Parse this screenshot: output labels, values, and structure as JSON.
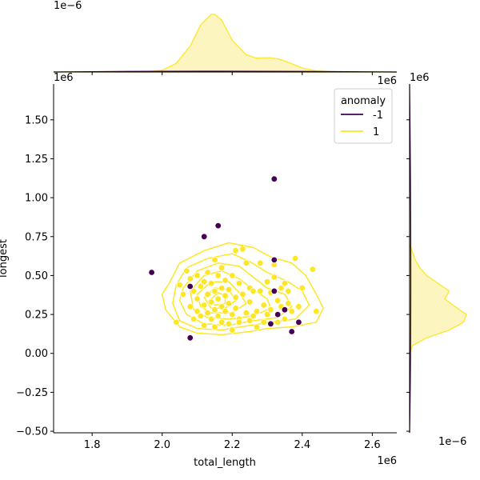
{
  "chart_data": {
    "type": "scatter",
    "xlabel": "total_length",
    "ylabel": "longest",
    "x_offset_label": "1e6",
    "y_offset_label": "1e6",
    "top_marginal_offset_label": "1e−6",
    "right_marginal_offset_label": "1e−6",
    "xlim": [
      1.69,
      2.67
    ],
    "ylim": [
      -0.51,
      1.73
    ],
    "x_ticks": [
      1.8,
      2.0,
      2.2,
      2.4,
      2.6
    ],
    "x_tick_labels": [
      "1.8",
      "2.0",
      "2.2",
      "2.4",
      "2.6"
    ],
    "y_ticks": [
      -0.5,
      -0.25,
      0.0,
      0.25,
      0.5,
      0.75,
      1.0,
      1.25,
      1.5
    ],
    "y_tick_labels": [
      "−0.50",
      "−0.25",
      "0.00",
      "0.25",
      "0.50",
      "0.75",
      "1.00",
      "1.25",
      "1.50"
    ],
    "grid": false,
    "legend": {
      "title": "anomaly",
      "placement": "top-right",
      "entries": [
        {
          "label": "-1",
          "color": "#440154"
        },
        {
          "label": "1",
          "color": "#fde725"
        }
      ]
    },
    "colors": {
      "anomaly": "#440154",
      "normal": "#fde725",
      "kde_line": "#fde725",
      "kde_fill": "#fdf5c0"
    },
    "series": [
      {
        "name": "-1",
        "color": "#440154",
        "points": [
          [
            1.97,
            0.52
          ],
          [
            2.08,
            0.43
          ],
          [
            2.08,
            0.1
          ],
          [
            2.12,
            0.75
          ],
          [
            2.16,
            0.82
          ],
          [
            2.32,
            1.12
          ],
          [
            2.32,
            0.6
          ],
          [
            2.32,
            0.4
          ],
          [
            2.31,
            0.19
          ],
          [
            2.33,
            0.25
          ],
          [
            2.35,
            0.28
          ],
          [
            2.37,
            0.14
          ],
          [
            2.39,
            0.2
          ]
        ]
      },
      {
        "name": "1",
        "color": "#fde725",
        "points": [
          [
            2.04,
            0.2
          ],
          [
            2.05,
            0.44
          ],
          [
            2.06,
            0.38
          ],
          [
            2.07,
            0.53
          ],
          [
            2.08,
            0.48
          ],
          [
            2.08,
            0.3
          ],
          [
            2.09,
            0.22
          ],
          [
            2.09,
            0.4
          ],
          [
            2.1,
            0.35
          ],
          [
            2.1,
            0.5
          ],
          [
            2.1,
            0.27
          ],
          [
            2.11,
            0.24
          ],
          [
            2.11,
            0.43
          ],
          [
            2.12,
            0.18
          ],
          [
            2.12,
            0.31
          ],
          [
            2.12,
            0.46
          ],
          [
            2.13,
            0.38
          ],
          [
            2.13,
            0.26
          ],
          [
            2.13,
            0.52
          ],
          [
            2.14,
            0.22
          ],
          [
            2.14,
            0.33
          ],
          [
            2.14,
            0.45
          ],
          [
            2.15,
            0.6
          ],
          [
            2.15,
            0.28
          ],
          [
            2.15,
            0.17
          ],
          [
            2.15,
            0.4
          ],
          [
            2.16,
            0.35
          ],
          [
            2.16,
            0.5
          ],
          [
            2.16,
            0.24
          ],
          [
            2.17,
            0.42
          ],
          [
            2.17,
            0.3
          ],
          [
            2.17,
            0.2
          ],
          [
            2.17,
            0.55
          ],
          [
            2.18,
            0.27
          ],
          [
            2.18,
            0.37
          ],
          [
            2.18,
            0.47
          ],
          [
            2.19,
            0.19
          ],
          [
            2.19,
            0.32
          ],
          [
            2.19,
            0.41
          ],
          [
            2.2,
            0.25
          ],
          [
            2.2,
            0.5
          ],
          [
            2.2,
            0.15
          ],
          [
            2.21,
            0.36
          ],
          [
            2.21,
            0.29
          ],
          [
            2.21,
            0.66
          ],
          [
            2.22,
            0.45
          ],
          [
            2.22,
            0.22
          ],
          [
            2.22,
            0.2
          ],
          [
            2.23,
            0.67
          ],
          [
            2.23,
            0.38
          ],
          [
            2.24,
            0.26
          ],
          [
            2.24,
            0.58
          ],
          [
            2.25,
            0.21
          ],
          [
            2.25,
            0.33
          ],
          [
            2.25,
            0.42
          ],
          [
            2.26,
            0.24
          ],
          [
            2.26,
            0.4
          ],
          [
            2.27,
            0.27
          ],
          [
            2.27,
            0.17
          ],
          [
            2.28,
            0.58
          ],
          [
            2.28,
            0.4
          ],
          [
            2.29,
            0.2
          ],
          [
            2.29,
            0.31
          ],
          [
            2.3,
            0.46
          ],
          [
            2.3,
            0.25
          ],
          [
            2.31,
            0.39
          ],
          [
            2.31,
            0.28
          ],
          [
            2.32,
            0.49
          ],
          [
            2.32,
            0.57
          ],
          [
            2.33,
            0.34
          ],
          [
            2.33,
            0.2
          ],
          [
            2.34,
            0.42
          ],
          [
            2.34,
            0.3
          ],
          [
            2.35,
            0.45
          ],
          [
            2.35,
            0.22
          ],
          [
            2.36,
            0.32
          ],
          [
            2.36,
            0.4
          ],
          [
            2.37,
            0.27
          ],
          [
            2.38,
            0.61
          ],
          [
            2.39,
            0.3
          ],
          [
            2.4,
            0.42
          ],
          [
            2.43,
            0.54
          ],
          [
            2.44,
            0.27
          ]
        ]
      }
    ],
    "kde_contours": [
      [
        [
          2.02,
          0.45
        ],
        [
          2.05,
          0.58
        ],
        [
          2.12,
          0.66
        ],
        [
          2.19,
          0.71
        ],
        [
          2.26,
          0.68
        ],
        [
          2.31,
          0.62
        ],
        [
          2.37,
          0.58
        ],
        [
          2.41,
          0.5
        ],
        [
          2.44,
          0.38
        ],
        [
          2.46,
          0.29
        ],
        [
          2.44,
          0.2
        ],
        [
          2.37,
          0.17
        ],
        [
          2.3,
          0.16
        ],
        [
          2.25,
          0.14
        ],
        [
          2.17,
          0.12
        ],
        [
          2.1,
          0.13
        ],
        [
          2.05,
          0.17
        ],
        [
          2.01,
          0.28
        ],
        [
          2.0,
          0.38
        ],
        [
          2.02,
          0.45
        ]
      ],
      [
        [
          2.04,
          0.44
        ],
        [
          2.07,
          0.55
        ],
        [
          2.13,
          0.61
        ],
        [
          2.2,
          0.64
        ],
        [
          2.25,
          0.59
        ],
        [
          2.3,
          0.52
        ],
        [
          2.36,
          0.46
        ],
        [
          2.4,
          0.4
        ],
        [
          2.42,
          0.31
        ],
        [
          2.38,
          0.22
        ],
        [
          2.31,
          0.2
        ],
        [
          2.25,
          0.18
        ],
        [
          2.17,
          0.15
        ],
        [
          2.1,
          0.16
        ],
        [
          2.05,
          0.21
        ],
        [
          2.03,
          0.32
        ],
        [
          2.04,
          0.44
        ]
      ],
      [
        [
          2.06,
          0.42
        ],
        [
          2.1,
          0.53
        ],
        [
          2.16,
          0.58
        ],
        [
          2.22,
          0.56
        ],
        [
          2.26,
          0.49
        ],
        [
          2.3,
          0.42
        ],
        [
          2.35,
          0.38
        ],
        [
          2.37,
          0.3
        ],
        [
          2.33,
          0.23
        ],
        [
          2.26,
          0.21
        ],
        [
          2.19,
          0.18
        ],
        [
          2.12,
          0.19
        ],
        [
          2.07,
          0.25
        ],
        [
          2.05,
          0.34
        ],
        [
          2.06,
          0.42
        ]
      ],
      [
        [
          2.08,
          0.4
        ],
        [
          2.12,
          0.5
        ],
        [
          2.17,
          0.53
        ],
        [
          2.22,
          0.48
        ],
        [
          2.26,
          0.41
        ],
        [
          2.3,
          0.35
        ],
        [
          2.31,
          0.29
        ],
        [
          2.26,
          0.24
        ],
        [
          2.19,
          0.22
        ],
        [
          2.13,
          0.23
        ],
        [
          2.09,
          0.28
        ],
        [
          2.08,
          0.4
        ]
      ],
      [
        [
          2.1,
          0.38
        ],
        [
          2.14,
          0.46
        ],
        [
          2.19,
          0.46
        ],
        [
          2.22,
          0.39
        ],
        [
          2.24,
          0.32
        ],
        [
          2.2,
          0.26
        ],
        [
          2.14,
          0.26
        ],
        [
          2.11,
          0.3
        ],
        [
          2.1,
          0.38
        ]
      ],
      [
        [
          2.12,
          0.36
        ],
        [
          2.15,
          0.42
        ],
        [
          2.19,
          0.41
        ],
        [
          2.21,
          0.34
        ],
        [
          2.18,
          0.29
        ],
        [
          2.14,
          0.29
        ],
        [
          2.12,
          0.36
        ]
      ],
      [
        [
          2.14,
          0.35
        ],
        [
          2.16,
          0.39
        ],
        [
          2.18,
          0.37
        ],
        [
          2.18,
          0.32
        ],
        [
          2.15,
          0.31
        ],
        [
          2.14,
          0.35
        ]
      ]
    ],
    "top_marginal_kde": {
      "x": [
        1.69,
        1.95,
        2.0,
        2.04,
        2.08,
        2.11,
        2.14,
        2.15,
        2.17,
        2.2,
        2.24,
        2.27,
        2.3,
        2.33,
        2.36,
        2.4,
        2.44,
        2.5,
        2.67
      ],
      "density": [
        0.0,
        0.0,
        0.03,
        0.15,
        0.45,
        0.82,
        1.0,
        1.0,
        0.9,
        0.55,
        0.3,
        0.24,
        0.25,
        0.23,
        0.17,
        0.07,
        0.02,
        0.0,
        0.0
      ]
    },
    "right_marginal_kde": {
      "y": [
        -0.51,
        0.0,
        0.05,
        0.1,
        0.15,
        0.2,
        0.25,
        0.3,
        0.35,
        0.4,
        0.45,
        0.5,
        0.55,
        0.6,
        0.65,
        0.7,
        1.73
      ],
      "density": [
        0.0,
        0.0,
        0.05,
        0.3,
        0.7,
        0.95,
        1.0,
        0.8,
        0.62,
        0.7,
        0.5,
        0.3,
        0.18,
        0.1,
        0.05,
        0.0,
        0.0
      ]
    }
  }
}
